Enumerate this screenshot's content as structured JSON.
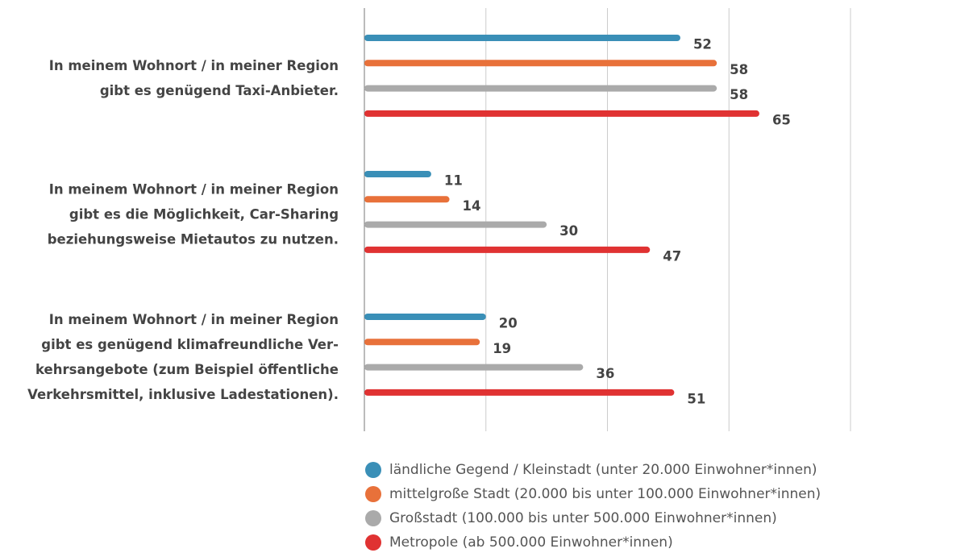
{
  "chart_data": {
    "type": "bar",
    "orientation": "horizontal",
    "categories": [
      [
        "In meinem Wohnort / in meiner Region",
        "gibt es genügend Taxi-Anbieter."
      ],
      [
        "In meinem Wohnort / in meiner Region",
        "gibt es die Möglichkeit, Car-Sharing",
        "beziehungsweise Mietautos zu nutzen."
      ],
      [
        "In meinem Wohnort / in meiner Region",
        "gibt es genügend klimafreundliche Ver-",
        "kehrsangebote (zum Beispiel öffentliche",
        "Verkehrsmittel, inklusive Ladestationen)."
      ]
    ],
    "series": [
      {
        "name": "ländliche Gegend / Kleinstadt (unter 20.000 Einwohner*innen)",
        "color": "#3a8fb7",
        "values": [
          52,
          11,
          20
        ]
      },
      {
        "name": "mittelgroße Stadt (20.000 bis unter 100.000 Einwohner*innen)",
        "color": "#e8713a",
        "values": [
          58,
          14,
          19
        ]
      },
      {
        "name": "Großstadt (100.000 bis unter 500.000 Einwohner*innen)",
        "color": "#aaaaaa",
        "values": [
          58,
          30,
          36
        ]
      },
      {
        "name": "Metropole (ab 500.000 Einwohner*innen)",
        "color": "#e03232",
        "values": [
          65,
          47,
          51
        ]
      }
    ],
    "xlim": [
      0,
      80
    ],
    "xticks": [
      0,
      20,
      40,
      60,
      80
    ],
    "grid": true,
    "legend": "bottom"
  }
}
